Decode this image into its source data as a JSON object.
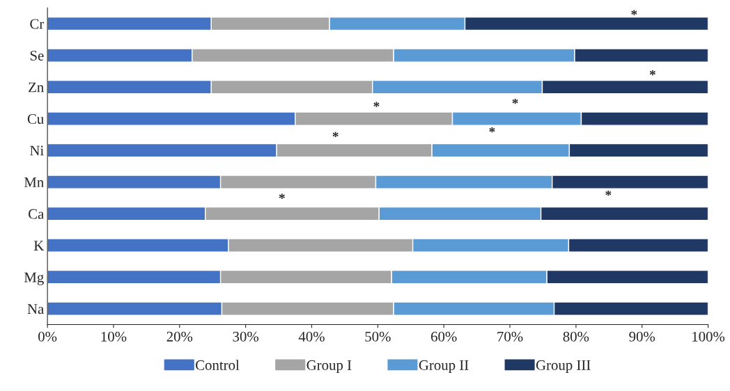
{
  "chart_data": {
    "type": "bar",
    "orientation": "horizontal",
    "stacked": true,
    "categories": [
      "Cr",
      "Se",
      "Zn",
      "Cu",
      "Ni",
      "Mn",
      "Ca",
      "K",
      "Mg",
      "Na"
    ],
    "series": [
      {
        "name": "Control",
        "color": "#4472c4",
        "values": [
          24.8,
          21.9,
          24.8,
          37.5,
          34.7,
          26.2,
          23.9,
          27.4,
          26.2,
          26.4
        ]
      },
      {
        "name": "Group I",
        "color": "#a5a5a5",
        "values": [
          17.9,
          30.5,
          24.4,
          23.8,
          23.5,
          23.5,
          26.3,
          27.9,
          25.9,
          26.0
        ]
      },
      {
        "name": "Group II",
        "color": "#5b9bd5",
        "values": [
          20.5,
          27.4,
          25.7,
          19.5,
          20.8,
          26.7,
          24.5,
          23.6,
          23.5,
          24.3
        ]
      },
      {
        "name": "Group III",
        "color": "#203864",
        "values": [
          36.8,
          20.2,
          25.1,
          19.2,
          21.0,
          23.6,
          25.3,
          21.1,
          24.4,
          23.3
        ]
      }
    ],
    "xlim": [
      0,
      100
    ],
    "xticks": [
      {
        "value": 0,
        "label": "0%"
      },
      {
        "value": 10,
        "label": "10%"
      },
      {
        "value": 20,
        "label": "20%"
      },
      {
        "value": 30,
        "label": "30%"
      },
      {
        "value": 40,
        "label": "40%"
      },
      {
        "value": 50,
        "label": "50%"
      },
      {
        "value": 60,
        "label": "60%"
      },
      {
        "value": 70,
        "label": "70%"
      },
      {
        "value": 80,
        "label": "80%"
      },
      {
        "value": 90,
        "label": "90%"
      },
      {
        "value": 100,
        "label": "100%"
      }
    ],
    "annotations": [
      "*",
      "*",
      "*",
      "*",
      "*",
      "*",
      "*",
      "*"
    ],
    "grid": false,
    "legend": "bottom"
  }
}
